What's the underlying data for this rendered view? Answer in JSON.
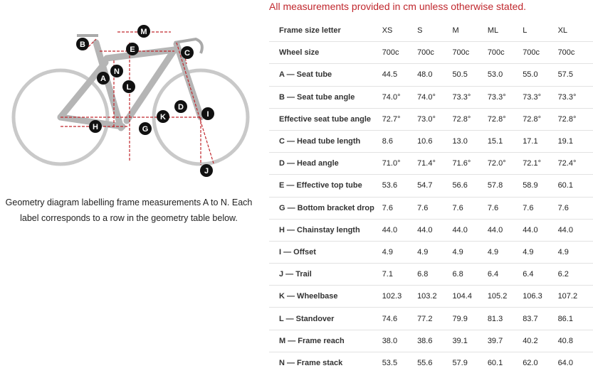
{
  "note": "All measurements provided in cm unless otherwise stated.",
  "diagram": {
    "labels": [
      "B",
      "M",
      "E",
      "C",
      "A",
      "N",
      "L",
      "D",
      "I",
      "K",
      "H",
      "G",
      "J"
    ]
  },
  "caption": "Geometry diagram labelling frame measurements A to N. Each label corresponds to a row in the geometry table below.",
  "table": {
    "header": [
      "Frame size letter",
      "XS",
      "S",
      "M",
      "ML",
      "L",
      "XL"
    ],
    "rows": [
      [
        "Wheel size",
        "700c",
        "700c",
        "700c",
        "700c",
        "700c",
        "700c"
      ],
      [
        "A — Seat tube",
        "44.5",
        "48.0",
        "50.5",
        "53.0",
        "55.0",
        "57.5"
      ],
      [
        "B — Seat tube angle",
        "74.0°",
        "74.0°",
        "73.3°",
        "73.3°",
        "73.3°",
        "73.3°"
      ],
      [
        "Effective seat tube angle",
        "72.7°",
        "73.0°",
        "72.8°",
        "72.8°",
        "72.8°",
        "72.8°"
      ],
      [
        "C — Head tube length",
        "8.6",
        "10.6",
        "13.0",
        "15.1",
        "17.1",
        "19.1"
      ],
      [
        "D — Head angle",
        "71.0°",
        "71.4°",
        "71.6°",
        "72.0°",
        "72.1°",
        "72.4°"
      ],
      [
        "E — Effective top tube",
        "53.6",
        "54.7",
        "56.6",
        "57.8",
        "58.9",
        "60.1"
      ],
      [
        "G — Bottom bracket drop",
        "7.6",
        "7.6",
        "7.6",
        "7.6",
        "7.6",
        "7.6"
      ],
      [
        "H — Chainstay length",
        "44.0",
        "44.0",
        "44.0",
        "44.0",
        "44.0",
        "44.0"
      ],
      [
        "I — Offset",
        "4.9",
        "4.9",
        "4.9",
        "4.9",
        "4.9",
        "4.9"
      ],
      [
        "J — Trail",
        "7.1",
        "6.8",
        "6.8",
        "6.4",
        "6.4",
        "6.2"
      ],
      [
        "K — Wheelbase",
        "102.3",
        "103.2",
        "104.4",
        "105.2",
        "106.3",
        "107.2"
      ],
      [
        "L — Standover",
        "74.6",
        "77.2",
        "79.9",
        "81.3",
        "83.7",
        "86.1"
      ],
      [
        "M — Frame reach",
        "38.0",
        "38.6",
        "39.1",
        "39.7",
        "40.2",
        "40.8"
      ],
      [
        "N — Frame stack",
        "53.5",
        "55.6",
        "57.9",
        "60.1",
        "62.0",
        "64.0"
      ]
    ]
  }
}
